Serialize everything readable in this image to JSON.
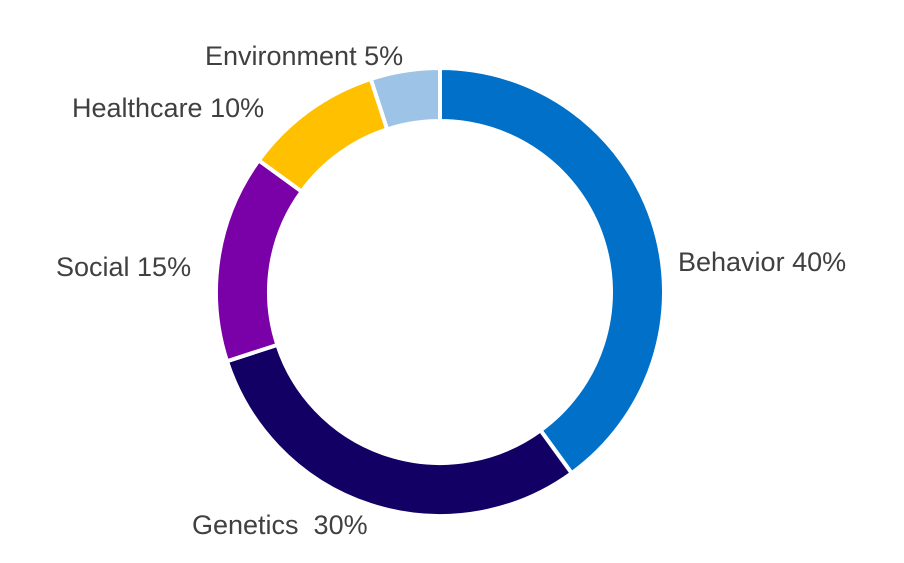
{
  "chart_data": {
    "type": "pie",
    "donut": true,
    "title": "",
    "slices": [
      {
        "label": "Behavior 40%",
        "category": "Behavior",
        "value": 40,
        "color": "#0070c9"
      },
      {
        "label": "Genetics  30%",
        "category": "Genetics",
        "value": 30,
        "color": "#120064"
      },
      {
        "label": "Social 15%",
        "category": "Social",
        "value": 15,
        "color": "#7a00a8"
      },
      {
        "label": "Healthcare 10%",
        "category": "Healthcare",
        "value": 10,
        "color": "#ffc000"
      },
      {
        "label": "Environment 5%",
        "category": "Environment",
        "value": 5,
        "color": "#9dc3e6"
      }
    ],
    "legend": "none",
    "data_labels": "outside"
  }
}
